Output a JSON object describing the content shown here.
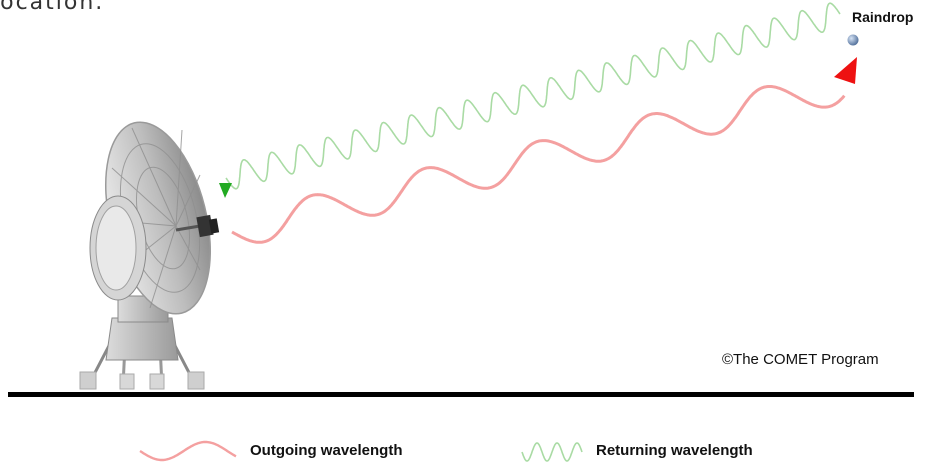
{
  "caption_fragment": "location.",
  "raindrop_label": "Raindrop",
  "credit": "©The COMET Program",
  "legend": {
    "outgoing": "Outgoing wavelength",
    "returning": "Returning wavelength"
  },
  "colors": {
    "outgoing_wave": "#f4a0a0",
    "returning_wave": "#a9dba4",
    "outgoing_arrow": "#ee1111",
    "returning_arrow": "#22aa22",
    "ground": "#000000",
    "raindrop": "#6f8fb8"
  },
  "icons": {
    "radar": "radar-dish-icon",
    "raindrop": "raindrop-icon"
  }
}
